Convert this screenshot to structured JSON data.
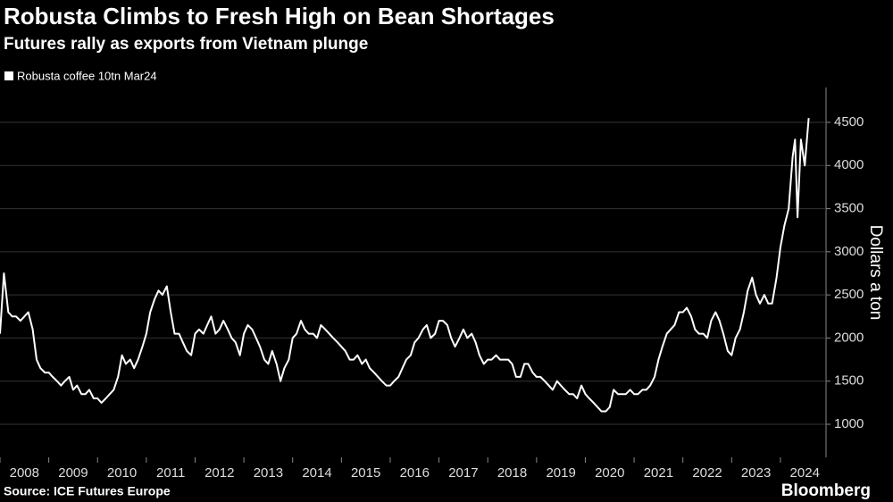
{
  "chart_data": {
    "type": "line",
    "title": "Robusta Climbs to Fresh High on Bean Shortages",
    "subtitle": "Futures rally as exports from Vietnam plunge",
    "y_label": "Dollars a ton",
    "source": "Source: ICE Futures Europe",
    "brand": "Bloomberg",
    "x": [
      2008,
      2008.08,
      2008.17,
      2008.25,
      2008.33,
      2008.42,
      2008.5,
      2008.58,
      2008.67,
      2008.75,
      2008.83,
      2008.92,
      2009,
      2009.08,
      2009.17,
      2009.25,
      2009.33,
      2009.42,
      2009.5,
      2009.58,
      2009.67,
      2009.75,
      2009.83,
      2009.92,
      2010,
      2010.08,
      2010.17,
      2010.25,
      2010.33,
      2010.42,
      2010.5,
      2010.58,
      2010.67,
      2010.75,
      2010.83,
      2010.92,
      2011,
      2011.08,
      2011.17,
      2011.25,
      2011.33,
      2011.42,
      2011.5,
      2011.58,
      2011.67,
      2011.75,
      2011.83,
      2011.92,
      2012,
      2012.08,
      2012.17,
      2012.25,
      2012.33,
      2012.42,
      2012.5,
      2012.58,
      2012.67,
      2012.75,
      2012.83,
      2012.92,
      2013,
      2013.08,
      2013.17,
      2013.25,
      2013.33,
      2013.42,
      2013.5,
      2013.58,
      2013.67,
      2013.75,
      2013.83,
      2013.92,
      2014,
      2014.08,
      2014.17,
      2014.25,
      2014.33,
      2014.42,
      2014.5,
      2014.58,
      2014.67,
      2014.75,
      2014.83,
      2014.92,
      2015,
      2015.08,
      2015.17,
      2015.25,
      2015.33,
      2015.42,
      2015.5,
      2015.58,
      2015.67,
      2015.75,
      2015.83,
      2015.92,
      2016,
      2016.08,
      2016.17,
      2016.25,
      2016.33,
      2016.42,
      2016.5,
      2016.58,
      2016.67,
      2016.75,
      2016.83,
      2016.92,
      2017,
      2017.08,
      2017.17,
      2017.25,
      2017.33,
      2017.42,
      2017.5,
      2017.58,
      2017.67,
      2017.75,
      2017.83,
      2017.92,
      2018,
      2018.08,
      2018.17,
      2018.25,
      2018.33,
      2018.42,
      2018.5,
      2018.58,
      2018.67,
      2018.75,
      2018.83,
      2018.92,
      2019,
      2019.08,
      2019.17,
      2019.25,
      2019.33,
      2019.42,
      2019.5,
      2019.58,
      2019.67,
      2019.75,
      2019.83,
      2019.92,
      2020,
      2020.08,
      2020.17,
      2020.25,
      2020.33,
      2020.42,
      2020.5,
      2020.58,
      2020.67,
      2020.75,
      2020.83,
      2020.92,
      2021,
      2021.08,
      2021.17,
      2021.25,
      2021.33,
      2021.42,
      2021.5,
      2021.58,
      2021.67,
      2021.75,
      2021.83,
      2021.92,
      2022,
      2022.08,
      2022.17,
      2022.25,
      2022.33,
      2022.42,
      2022.5,
      2022.58,
      2022.67,
      2022.75,
      2022.83,
      2022.92,
      2023,
      2023.08,
      2023.17,
      2023.25,
      2023.33,
      2023.42,
      2023.5,
      2023.58,
      2023.67,
      2023.75,
      2023.83,
      2023.92,
      2024,
      2024.08,
      2024.17,
      2024.25,
      2024.3,
      2024.35,
      2024.42,
      2024.5,
      2024.58
    ],
    "series": [
      {
        "name": "Robusta coffee 10tn Mar24",
        "color": "#ffffff",
        "values": [
          2050,
          2750,
          2300,
          2250,
          2250,
          2200,
          2250,
          2300,
          2100,
          1750,
          1650,
          1600,
          1600,
          1550,
          1500,
          1450,
          1500,
          1550,
          1400,
          1450,
          1350,
          1350,
          1400,
          1300,
          1300,
          1250,
          1300,
          1350,
          1400,
          1550,
          1800,
          1700,
          1750,
          1650,
          1750,
          1900,
          2050,
          2300,
          2450,
          2550,
          2500,
          2600,
          2300,
          2050,
          2050,
          1950,
          1850,
          1800,
          2050,
          2100,
          2050,
          2150,
          2250,
          2050,
          2100,
          2200,
          2100,
          2000,
          1950,
          1800,
          2050,
          2150,
          2100,
          2000,
          1900,
          1750,
          1700,
          1850,
          1700,
          1500,
          1650,
          1750,
          2000,
          2050,
          2200,
          2100,
          2050,
          2050,
          2000,
          2150,
          2100,
          2050,
          2000,
          1950,
          1900,
          1850,
          1750,
          1750,
          1800,
          1700,
          1750,
          1650,
          1600,
          1550,
          1500,
          1450,
          1450,
          1500,
          1550,
          1650,
          1750,
          1800,
          1950,
          2000,
          2100,
          2150,
          2000,
          2050,
          2200,
          2200,
          2150,
          2000,
          1900,
          2000,
          2100,
          2000,
          2050,
          1950,
          1800,
          1700,
          1750,
          1750,
          1800,
          1750,
          1750,
          1750,
          1700,
          1550,
          1550,
          1700,
          1700,
          1600,
          1550,
          1550,
          1500,
          1450,
          1400,
          1500,
          1450,
          1400,
          1350,
          1350,
          1300,
          1450,
          1350,
          1300,
          1250,
          1200,
          1150,
          1150,
          1200,
          1400,
          1350,
          1350,
          1350,
          1400,
          1350,
          1350,
          1400,
          1400,
          1450,
          1550,
          1750,
          1900,
          2050,
          2100,
          2150,
          2300,
          2300,
          2350,
          2250,
          2100,
          2050,
          2050,
          2000,
          2200,
          2300,
          2200,
          2050,
          1850,
          1800,
          2000,
          2100,
          2300,
          2550,
          2700,
          2500,
          2400,
          2500,
          2400,
          2400,
          2700,
          3050,
          3300,
          3500,
          4100,
          4300,
          3400,
          4300,
          4000,
          4550
        ]
      }
    ],
    "xlim": [
      2008,
      2024.88
    ],
    "xticks": [
      2008,
      2009,
      2010,
      2011,
      2012,
      2013,
      2014,
      2015,
      2016,
      2017,
      2018,
      2019,
      2020,
      2021,
      2022,
      2023,
      2024
    ],
    "ylim": [
      617,
      4883
    ],
    "yticks": [
      1000,
      1500,
      2000,
      2500,
      3000,
      3500,
      4000,
      4500
    ],
    "grid": true
  }
}
